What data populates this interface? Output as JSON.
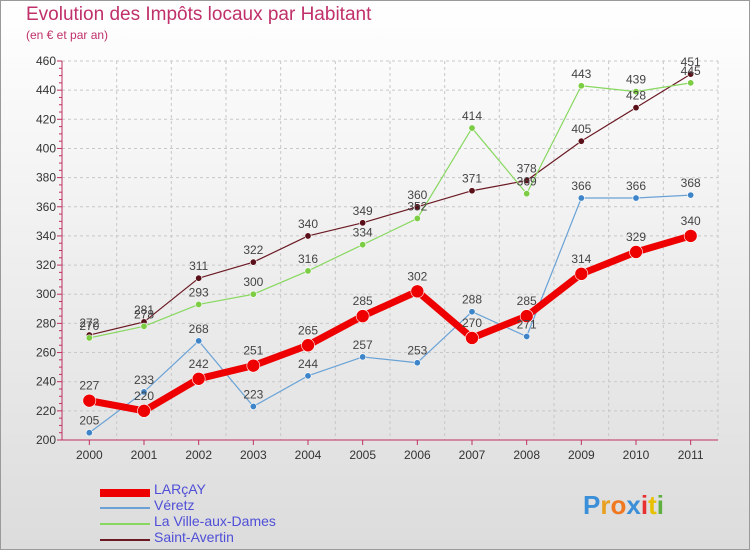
{
  "header": {
    "title": "Evolution des Impôts locaux par Habitant",
    "subtitle": "(en € et par an)"
  },
  "logo": {
    "text": "Proxiti"
  },
  "chart_data": {
    "type": "line",
    "title": "Evolution des Impôts locaux par Habitant",
    "subtitle": "(en € et par an)",
    "xlabel": "",
    "ylabel": "",
    "ylim": [
      200,
      460
    ],
    "yticks": [
      200,
      220,
      240,
      260,
      280,
      300,
      320,
      340,
      360,
      380,
      400,
      420,
      440,
      460
    ],
    "grid": true,
    "legend_position": "bottom-left",
    "categories": [
      "2000",
      "2001",
      "2002",
      "2003",
      "2004",
      "2005",
      "2006",
      "2007",
      "2008",
      "2009",
      "2010",
      "2011"
    ],
    "series": [
      {
        "name": "Saint-Avertin",
        "color": "#6b1a24",
        "marker": "#5a1018",
        "width": 1.2,
        "radius": 3.2,
        "values": [
          272,
          281,
          311,
          322,
          340,
          349,
          360,
          371,
          378,
          405,
          428,
          451
        ]
      },
      {
        "name": "La Ville-aux-Dames",
        "color": "#88d860",
        "marker": "#7ccc44",
        "width": 1.2,
        "radius": 3.2,
        "values": [
          270,
          278,
          293,
          300,
          316,
          334,
          352,
          414,
          369,
          443,
          439,
          445
        ]
      },
      {
        "name": "Véretz",
        "color": "#6aa2d6",
        "marker": "#3d84c8",
        "width": 1.2,
        "radius": 3.2,
        "values": [
          205,
          233,
          268,
          223,
          244,
          257,
          253,
          288,
          271,
          366,
          366,
          368
        ]
      },
      {
        "name": "LARçAY",
        "color": "#ee0000",
        "marker": "#ee0000",
        "width": 7,
        "radius": 6.5,
        "values": [
          227,
          220,
          242,
          251,
          265,
          285,
          302,
          270,
          285,
          314,
          329,
          340
        ]
      }
    ]
  },
  "legend": {
    "items": [
      {
        "label": "LARçAY",
        "color": "#ee0000"
      },
      {
        "label": "Véretz",
        "color": "#6aa2d6"
      },
      {
        "label": "La Ville-aux-Dames",
        "color": "#88d860"
      },
      {
        "label": "Saint-Avertin",
        "color": "#6b1a24"
      }
    ]
  }
}
